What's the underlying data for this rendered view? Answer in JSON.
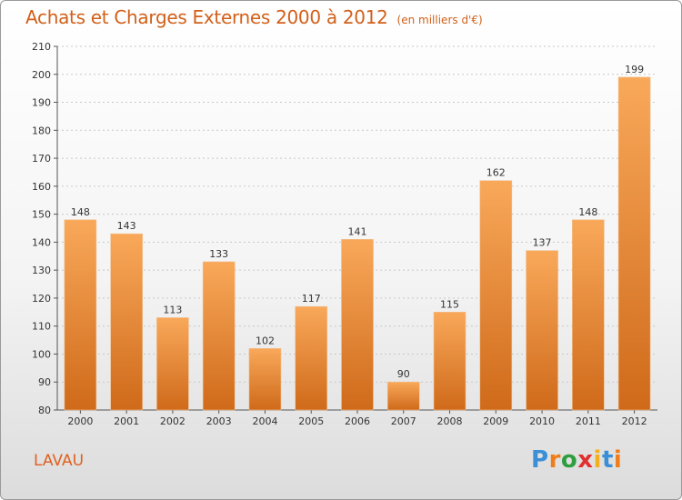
{
  "title": "Achats et Charges Externes 2000 à 2012",
  "subtitle": "(en milliers d'€)",
  "commune": "LAVAU",
  "logo": {
    "text": "Proxiti",
    "colors": [
      "#3a8fd6",
      "#ef7d1a",
      "#2e9e3e",
      "#e03030",
      "#f2b01e",
      "#3a8fd6",
      "#ef7d1a"
    ]
  },
  "colors": {
    "bar_light": "#f9a85a",
    "bar_dark": "#cf6a1a",
    "title": "#d2601a"
  },
  "chart_data": {
    "type": "bar",
    "categories": [
      "2000",
      "2001",
      "2002",
      "2003",
      "2004",
      "2005",
      "2006",
      "2007",
      "2008",
      "2009",
      "2010",
      "2011",
      "2012"
    ],
    "values": [
      148,
      143,
      113,
      133,
      102,
      117,
      141,
      90,
      115,
      162,
      137,
      148,
      199
    ],
    "ylim": [
      80,
      210
    ],
    "yticks": [
      80,
      90,
      100,
      110,
      120,
      130,
      140,
      150,
      160,
      170,
      180,
      190,
      200,
      210
    ],
    "grid": true,
    "legend": "none"
  }
}
